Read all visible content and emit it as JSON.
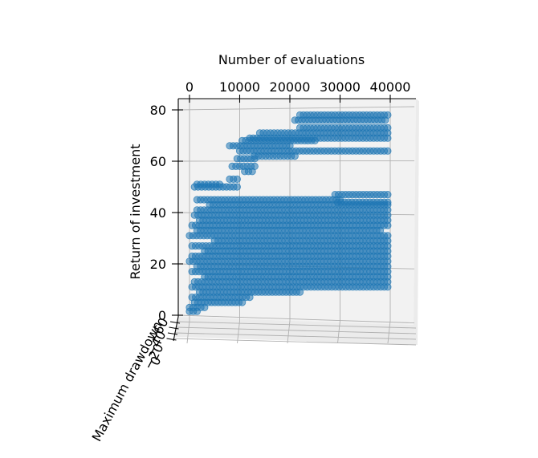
{
  "chart_data": {
    "type": "scatter",
    "projection": "3d",
    "series_color": "#1f77b4",
    "xlabel": "Number of evaluations",
    "ylabel": "Return of investment",
    "zlabel": "Maximum drawdown",
    "xlim": [
      0,
      42000
    ],
    "ylim": [
      0,
      84
    ],
    "x_ticks": [
      "0",
      "10000",
      "20000",
      "30000",
      "40000"
    ],
    "y_ticks": [
      "0",
      "20",
      "40",
      "60",
      "80"
    ],
    "z_ticks": [
      "−60",
      "−40",
      "−20",
      "0"
    ],
    "grid": true,
    "bands": [
      {
        "x0": 22000,
        "x1": 39500,
        "y": 78
      },
      {
        "x0": 21000,
        "x1": 39000,
        "y": 76
      },
      {
        "x0": 22000,
        "x1": 39500,
        "y": 73
      },
      {
        "x0": 14000,
        "x1": 39500,
        "y": 71
      },
      {
        "x0": 12000,
        "x1": 39500,
        "y": 69
      },
      {
        "x0": 10500,
        "x1": 25000,
        "y": 68
      },
      {
        "x0": 8000,
        "x1": 20000,
        "y": 66
      },
      {
        "x0": 10000,
        "x1": 39500,
        "y": 64
      },
      {
        "x0": 13000,
        "x1": 21000,
        "y": 62
      },
      {
        "x0": 9500,
        "x1": 13000,
        "y": 61
      },
      {
        "x0": 8500,
        "x1": 13000,
        "y": 58
      },
      {
        "x0": 11000,
        "x1": 12500,
        "y": 56
      },
      {
        "x0": 8000,
        "x1": 9500,
        "y": 53
      },
      {
        "x0": 1500,
        "x1": 6000,
        "y": 51
      },
      {
        "x0": 1000,
        "x1": 9500,
        "y": 50
      },
      {
        "x0": 29000,
        "x1": 39500,
        "y": 47
      },
      {
        "x0": 1500,
        "x1": 30000,
        "y": 45
      },
      {
        "x0": 29500,
        "x1": 39500,
        "y": 44
      },
      {
        "x0": 4000,
        "x1": 39500,
        "y": 43
      },
      {
        "x0": 1500,
        "x1": 39500,
        "y": 41
      },
      {
        "x0": 1000,
        "x1": 39500,
        "y": 39
      },
      {
        "x0": 2000,
        "x1": 39500,
        "y": 37
      },
      {
        "x0": 500,
        "x1": 39500,
        "y": 35
      },
      {
        "x0": 1500,
        "x1": 38000,
        "y": 33
      },
      {
        "x0": 0,
        "x1": 39500,
        "y": 31
      },
      {
        "x0": 5000,
        "x1": 39500,
        "y": 29
      },
      {
        "x0": 500,
        "x1": 39500,
        "y": 27
      },
      {
        "x0": 3000,
        "x1": 39500,
        "y": 25
      },
      {
        "x0": 500,
        "x1": 39500,
        "y": 23
      },
      {
        "x0": 0,
        "x1": 39500,
        "y": 21
      },
      {
        "x0": 1500,
        "x1": 39500,
        "y": 19
      },
      {
        "x0": 500,
        "x1": 39500,
        "y": 17
      },
      {
        "x0": 3000,
        "x1": 39500,
        "y": 15
      },
      {
        "x0": 1000,
        "x1": 39500,
        "y": 13
      },
      {
        "x0": 500,
        "x1": 39500,
        "y": 11
      },
      {
        "x0": 2000,
        "x1": 22000,
        "y": 9
      },
      {
        "x0": 500,
        "x1": 12000,
        "y": 7
      },
      {
        "x0": 1000,
        "x1": 10500,
        "y": 5
      },
      {
        "x0": 0,
        "x1": 3000,
        "y": 3
      },
      {
        "x0": 0,
        "x1": 1500,
        "y": 1.5
      }
    ]
  }
}
